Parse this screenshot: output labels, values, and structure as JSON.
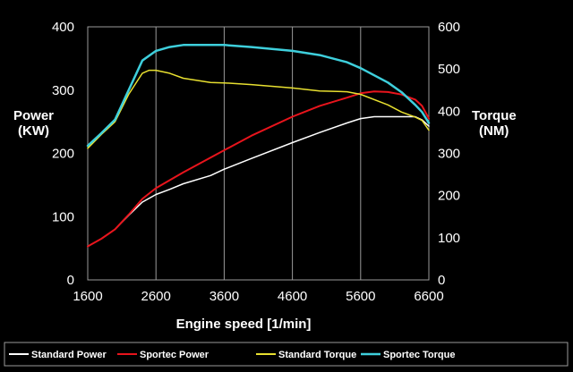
{
  "chart_data": {
    "type": "line",
    "xlabel": "Engine speed [1/min]",
    "ylabel": [
      "Power",
      "(KW)"
    ],
    "y2label": [
      "Torque",
      "(NM)"
    ],
    "xlim": [
      1600,
      6600
    ],
    "ylim": [
      0,
      400
    ],
    "y2lim": [
      0,
      600
    ],
    "xticks": [
      1600,
      2600,
      3600,
      4600,
      5600,
      6600
    ],
    "yticks": [
      0,
      100,
      200,
      300,
      400
    ],
    "y2ticks": [
      0,
      100,
      200,
      300,
      400,
      500,
      600
    ],
    "grid": "vertical",
    "legend_position": "bottom",
    "series": [
      {
        "name": "Standard Power",
        "axis": "left",
        "color": "#ffffff",
        "x": [
          1600,
          1800,
          2000,
          2200,
          2400,
          2600,
          2800,
          3000,
          3400,
          3600,
          4000,
          4600,
          5000,
          5400,
          5600,
          5800,
          6000,
          6200,
          6400,
          6500,
          6600
        ],
        "y": [
          53,
          65,
          80,
          102,
          123,
          135,
          143,
          152,
          165,
          175,
          192,
          217,
          233,
          248,
          255,
          258,
          258,
          258,
          258,
          253,
          243
        ]
      },
      {
        "name": "Sportec Power",
        "axis": "left",
        "color": "#e8141c",
        "x": [
          1600,
          1800,
          2000,
          2200,
          2400,
          2600,
          3000,
          3600,
          4000,
          4600,
          5000,
          5400,
          5600,
          5800,
          6000,
          6200,
          6400,
          6500,
          6600
        ],
        "y": [
          53,
          65,
          80,
          103,
          128,
          145,
          170,
          205,
          228,
          258,
          275,
          288,
          295,
          298,
          297,
          293,
          285,
          275,
          255
        ]
      },
      {
        "name": "Standard Torque",
        "axis": "right",
        "color": "#e8e030",
        "x": [
          1600,
          1800,
          2000,
          2200,
          2400,
          2500,
          2600,
          2800,
          3000,
          3400,
          3600,
          4000,
          4600,
          5000,
          5400,
          5600,
          6000,
          6200,
          6400,
          6500,
          6600
        ],
        "y": [
          312,
          345,
          375,
          440,
          490,
          497,
          497,
          490,
          478,
          468,
          467,
          463,
          455,
          448,
          446,
          440,
          415,
          398,
          386,
          378,
          355
        ]
      },
      {
        "name": "Sportec Torque",
        "axis": "right",
        "color": "#3ecfdc",
        "x": [
          1600,
          1800,
          2000,
          2200,
          2400,
          2600,
          2800,
          3000,
          3600,
          4000,
          4600,
          5000,
          5400,
          5600,
          6000,
          6200,
          6400,
          6500,
          6600
        ],
        "y": [
          318,
          348,
          380,
          450,
          520,
          543,
          552,
          557,
          557,
          552,
          543,
          533,
          516,
          502,
          468,
          445,
          415,
          398,
          372
        ]
      }
    ]
  }
}
